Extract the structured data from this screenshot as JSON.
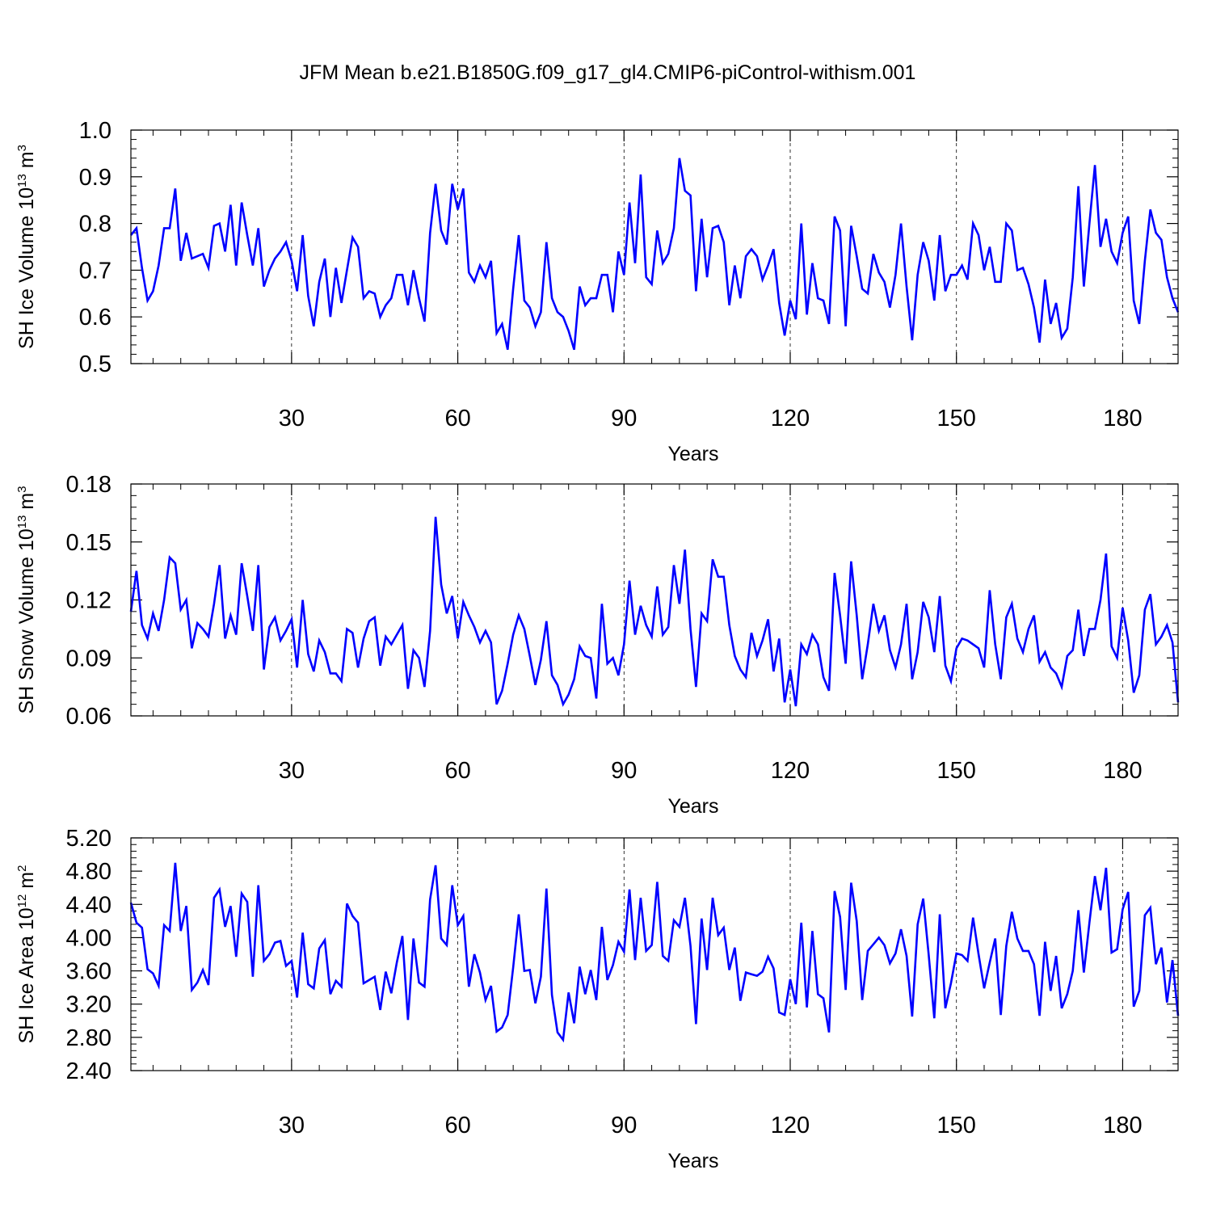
{
  "figure": {
    "title": "JFM Mean b.e21.B1850G.f09_g17_gl4.CMIP6-piControl-withism.001"
  },
  "colors": {
    "series": "#0000ff",
    "axis": "#000000",
    "grid": "#000000"
  },
  "chart_data": [
    {
      "type": "line",
      "title": "JFM Mean b.e21.B1850G.f09_g17_gl4.CMIP6-piControl-withism.001",
      "xlabel": "Years",
      "ylabel": {
        "prefix": "SH Ice Volume 10",
        "exp": "13",
        "unit": " m",
        "unit_exp": "3"
      },
      "xlim": [
        1,
        190
      ],
      "ylim": [
        0.5,
        1.0
      ],
      "x_ticks": [
        30,
        60,
        90,
        120,
        150,
        180
      ],
      "y_ticks": [
        0.5,
        0.6,
        0.7,
        0.8,
        0.9,
        1.0
      ],
      "y_tick_labels": [
        "0.5",
        "0.6",
        "0.7",
        "0.8",
        "0.9",
        "1.0"
      ],
      "grid": "dashed vertical at x ticks",
      "series": [
        {
          "name": "SH Ice Volume",
          "start_year": 1,
          "values": [
            0.775,
            0.79,
            0.705,
            0.635,
            0.655,
            0.71,
            0.79,
            0.79,
            0.875,
            0.72,
            0.78,
            0.725,
            0.73,
            0.735,
            0.705,
            0.795,
            0.8,
            0.74,
            0.84,
            0.71,
            0.845,
            0.775,
            0.71,
            0.79,
            0.665,
            0.7,
            0.725,
            0.74,
            0.76,
            0.72,
            0.655,
            0.775,
            0.645,
            0.58,
            0.675,
            0.725,
            0.6,
            0.705,
            0.63,
            0.7,
            0.77,
            0.75,
            0.64,
            0.655,
            0.65,
            0.6,
            0.625,
            0.64,
            0.69,
            0.69,
            0.625,
            0.7,
            0.64,
            0.59,
            0.78,
            0.885,
            0.785,
            0.755,
            0.885,
            0.83,
            0.875,
            0.695,
            0.675,
            0.71,
            0.685,
            0.72,
            0.565,
            0.585,
            0.53,
            0.66,
            0.775,
            0.635,
            0.62,
            0.58,
            0.61,
            0.76,
            0.64,
            0.61,
            0.6,
            0.57,
            0.53,
            0.665,
            0.625,
            0.64,
            0.64,
            0.69,
            0.69,
            0.61,
            0.74,
            0.69,
            0.845,
            0.715,
            0.905,
            0.685,
            0.67,
            0.785,
            0.715,
            0.735,
            0.79,
            0.94,
            0.87,
            0.86,
            0.655,
            0.81,
            0.685,
            0.79,
            0.795,
            0.76,
            0.625,
            0.71,
            0.64,
            0.73,
            0.745,
            0.73,
            0.68,
            0.71,
            0.745,
            0.63,
            0.56,
            0.635,
            0.595,
            0.8,
            0.605,
            0.715,
            0.64,
            0.635,
            0.585,
            0.815,
            0.785,
            0.58,
            0.795,
            0.73,
            0.66,
            0.65,
            0.735,
            0.695,
            0.675,
            0.62,
            0.69,
            0.8,
            0.665,
            0.55,
            0.69,
            0.76,
            0.72,
            0.635,
            0.775,
            0.655,
            0.69,
            0.69,
            0.71,
            0.68,
            0.8,
            0.775,
            0.7,
            0.75,
            0.675,
            0.675,
            0.8,
            0.785,
            0.7,
            0.705,
            0.67,
            0.62,
            0.545,
            0.68,
            0.585,
            0.63,
            0.555,
            0.575,
            0.685,
            0.88,
            0.665,
            0.8,
            0.925,
            0.75,
            0.81,
            0.74,
            0.715,
            0.78,
            0.815,
            0.635,
            0.585,
            0.72,
            0.83,
            0.78,
            0.765,
            0.685,
            0.64,
            0.61
          ]
        }
      ]
    },
    {
      "type": "line",
      "xlabel": "Years",
      "ylabel": {
        "prefix": "SH Snow Volume 10",
        "exp": "13",
        "unit": " m",
        "unit_exp": "3"
      },
      "xlim": [
        1,
        190
      ],
      "ylim": [
        0.06,
        0.18
      ],
      "x_ticks": [
        30,
        60,
        90,
        120,
        150,
        180
      ],
      "y_ticks": [
        0.06,
        0.09,
        0.12,
        0.15,
        0.18
      ],
      "y_tick_labels": [
        "0.06",
        "0.09",
        "0.12",
        "0.15",
        "0.18"
      ],
      "grid": "dashed vertical at x ticks",
      "series": [
        {
          "name": "SH Snow Volume",
          "start_year": 1,
          "values": [
            0.114,
            0.135,
            0.107,
            0.1,
            0.113,
            0.104,
            0.12,
            0.142,
            0.139,
            0.115,
            0.12,
            0.095,
            0.108,
            0.105,
            0.101,
            0.118,
            0.138,
            0.1,
            0.112,
            0.102,
            0.139,
            0.122,
            0.104,
            0.138,
            0.084,
            0.106,
            0.111,
            0.099,
            0.104,
            0.11,
            0.085,
            0.12,
            0.092,
            0.083,
            0.099,
            0.093,
            0.082,
            0.082,
            0.078,
            0.105,
            0.103,
            0.085,
            0.1,
            0.109,
            0.111,
            0.086,
            0.101,
            0.097,
            0.102,
            0.107,
            0.074,
            0.094,
            0.09,
            0.075,
            0.104,
            0.163,
            0.128,
            0.113,
            0.122,
            0.1,
            0.119,
            0.112,
            0.106,
            0.098,
            0.104,
            0.098,
            0.066,
            0.073,
            0.087,
            0.102,
            0.112,
            0.105,
            0.091,
            0.076,
            0.089,
            0.109,
            0.081,
            0.076,
            0.066,
            0.071,
            0.079,
            0.096,
            0.091,
            0.09,
            0.069,
            0.118,
            0.087,
            0.09,
            0.081,
            0.097,
            0.13,
            0.102,
            0.117,
            0.107,
            0.101,
            0.127,
            0.102,
            0.106,
            0.138,
            0.118,
            0.146,
            0.105,
            0.075,
            0.113,
            0.109,
            0.141,
            0.132,
            0.132,
            0.107,
            0.091,
            0.084,
            0.08,
            0.103,
            0.091,
            0.099,
            0.11,
            0.083,
            0.1,
            0.067,
            0.084,
            0.065,
            0.097,
            0.092,
            0.102,
            0.097,
            0.08,
            0.073,
            0.134,
            0.112,
            0.087,
            0.14,
            0.112,
            0.079,
            0.097,
            0.118,
            0.104,
            0.112,
            0.094,
            0.085,
            0.097,
            0.118,
            0.079,
            0.093,
            0.119,
            0.111,
            0.093,
            0.122,
            0.086,
            0.078,
            0.095,
            0.1,
            0.099,
            0.097,
            0.095,
            0.085,
            0.125,
            0.097,
            0.079,
            0.111,
            0.118,
            0.1,
            0.093,
            0.105,
            0.112,
            0.088,
            0.093,
            0.085,
            0.082,
            0.075,
            0.091,
            0.094,
            0.115,
            0.091,
            0.105,
            0.105,
            0.12,
            0.144,
            0.096,
            0.09,
            0.116,
            0.099,
            0.072,
            0.081,
            0.115,
            0.123,
            0.097,
            0.101,
            0.107,
            0.098,
            0.067
          ]
        }
      ]
    },
    {
      "type": "line",
      "xlabel": "Years",
      "ylabel": {
        "prefix": "SH Ice Area 10",
        "exp": "12",
        "unit": " m",
        "unit_exp": "2"
      },
      "xlim": [
        1,
        190
      ],
      "ylim": [
        2.4,
        5.2
      ],
      "x_ticks": [
        30,
        60,
        90,
        120,
        150,
        180
      ],
      "y_ticks": [
        2.4,
        2.8,
        3.2,
        3.6,
        4.0,
        4.4,
        4.8,
        5.2
      ],
      "y_tick_labels": [
        "2.40",
        "2.80",
        "3.20",
        "3.60",
        "4.00",
        "4.40",
        "4.80",
        "5.20"
      ],
      "grid": "dashed vertical at x ticks",
      "series": [
        {
          "name": "SH Ice Area",
          "start_year": 1,
          "values": [
            4.42,
            4.18,
            4.12,
            3.62,
            3.57,
            3.42,
            4.15,
            4.08,
            4.9,
            4.08,
            4.38,
            3.37,
            3.46,
            3.61,
            3.43,
            4.48,
            4.58,
            4.13,
            4.38,
            3.77,
            4.53,
            4.43,
            3.53,
            4.63,
            3.72,
            3.8,
            3.94,
            3.96,
            3.66,
            3.72,
            3.28,
            4.06,
            3.44,
            3.39,
            3.87,
            3.97,
            3.32,
            3.48,
            3.41,
            4.41,
            4.26,
            4.18,
            3.45,
            3.49,
            3.53,
            3.13,
            3.59,
            3.33,
            3.7,
            4.02,
            3.01,
            3.99,
            3.46,
            3.41,
            4.46,
            4.87,
            3.99,
            3.91,
            4.63,
            4.15,
            4.26,
            3.41,
            3.8,
            3.58,
            3.25,
            3.42,
            2.87,
            2.92,
            3.07,
            3.64,
            4.28,
            3.6,
            3.61,
            3.21,
            3.53,
            4.59,
            3.31,
            2.86,
            2.77,
            3.34,
            2.97,
            3.65,
            3.32,
            3.61,
            3.25,
            4.13,
            3.49,
            3.67,
            3.95,
            3.83,
            4.58,
            3.73,
            4.48,
            3.84,
            3.91,
            4.67,
            3.78,
            3.72,
            4.21,
            4.13,
            4.48,
            3.9,
            2.96,
            4.23,
            3.61,
            4.48,
            4.03,
            4.12,
            3.61,
            3.88,
            3.24,
            3.58,
            3.56,
            3.54,
            3.59,
            3.77,
            3.63,
            3.1,
            3.07,
            3.5,
            3.2,
            4.18,
            3.16,
            4.08,
            3.32,
            3.27,
            2.86,
            4.56,
            4.25,
            3.37,
            4.66,
            4.2,
            3.25,
            3.84,
            3.92,
            4.0,
            3.91,
            3.69,
            3.81,
            4.1,
            3.78,
            3.05,
            4.16,
            4.47,
            3.79,
            3.03,
            4.28,
            3.15,
            3.45,
            3.81,
            3.79,
            3.72,
            4.24,
            3.8,
            3.39,
            3.7,
            3.99,
            3.07,
            3.9,
            4.31,
            3.99,
            3.84,
            3.84,
            3.68,
            3.06,
            3.95,
            3.36,
            3.78,
            3.15,
            3.32,
            3.6,
            4.33,
            3.58,
            4.18,
            4.74,
            4.33,
            4.84,
            3.82,
            3.86,
            4.34,
            4.55,
            3.17,
            3.36,
            4.27,
            4.36,
            3.68,
            3.88,
            3.22,
            3.73,
            3.06
          ]
        }
      ]
    }
  ]
}
